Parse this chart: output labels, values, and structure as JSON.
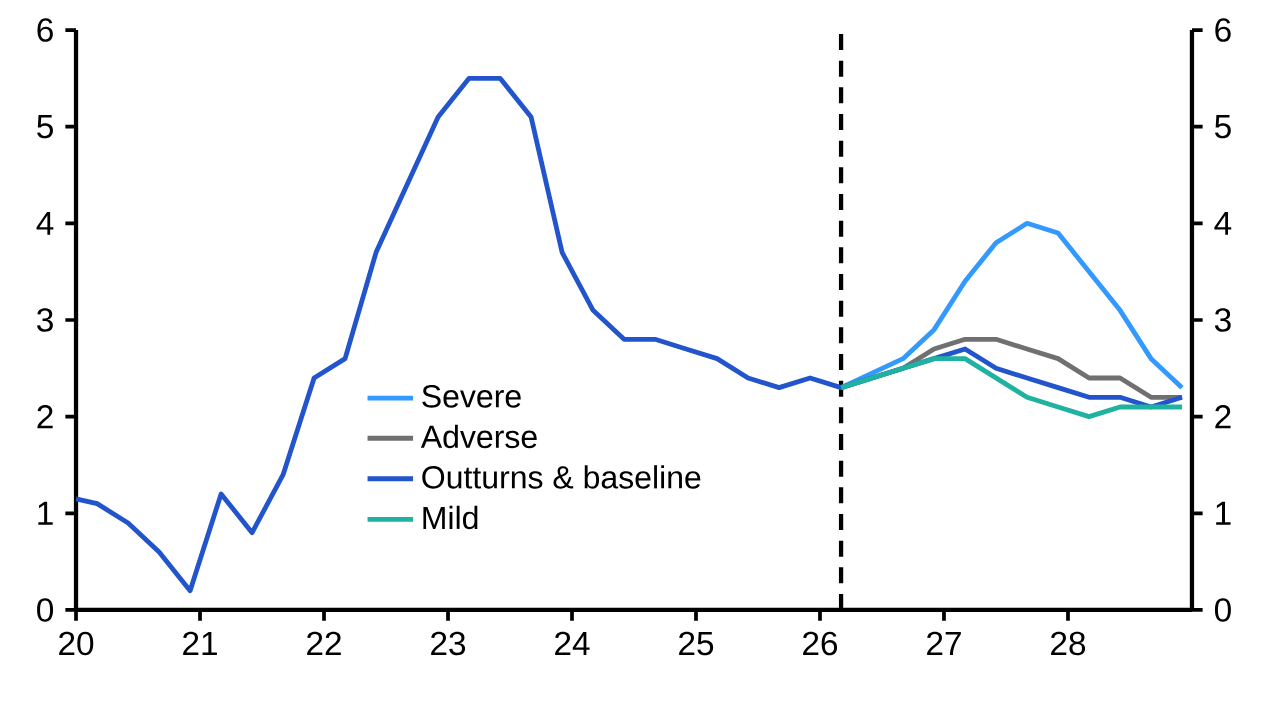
{
  "chart_data": {
    "type": "line",
    "xlim": [
      20,
      29
    ],
    "xticks": [
      20,
      21,
      22,
      23,
      24,
      25,
      26,
      27,
      28
    ],
    "ylim": [
      0,
      6
    ],
    "yticks": [
      0,
      1,
      2,
      3,
      4,
      5,
      6
    ],
    "y2lim": [
      0,
      6
    ],
    "y2ticks": [
      0,
      1,
      2,
      3,
      4,
      5,
      6
    ],
    "series": [
      {
        "name": "Severe",
        "color": "#3399ff",
        "x": [
          26.17,
          26.42,
          26.67,
          26.92,
          27.17,
          27.42,
          27.67,
          27.92,
          28.17,
          28.42,
          28.67,
          28.92
        ],
        "values": [
          2.3,
          2.45,
          2.6,
          2.9,
          3.4,
          3.8,
          4.0,
          3.9,
          3.5,
          3.1,
          2.6,
          2.3
        ]
      },
      {
        "name": "Adverse",
        "color": "#707070",
        "x": [
          26.17,
          26.42,
          26.67,
          26.92,
          27.17,
          27.42,
          27.67,
          27.92,
          28.17,
          28.42,
          28.67,
          28.92
        ],
        "values": [
          2.3,
          2.4,
          2.5,
          2.7,
          2.8,
          2.8,
          2.7,
          2.6,
          2.4,
          2.4,
          2.2,
          2.2
        ]
      },
      {
        "name": "Outturns & baseline",
        "color": "#2255cc",
        "x": [
          20.0,
          20.17,
          20.42,
          20.67,
          20.92,
          21.17,
          21.42,
          21.67,
          21.92,
          22.17,
          22.42,
          22.67,
          22.92,
          23.17,
          23.42,
          23.67,
          23.92,
          24.17,
          24.42,
          24.67,
          24.92,
          25.17,
          25.42,
          25.67,
          25.92,
          26.17,
          26.42,
          26.67,
          26.92,
          27.17,
          27.42,
          27.67,
          27.92,
          28.17,
          28.42,
          28.67,
          28.92
        ],
        "values": [
          1.15,
          1.1,
          0.9,
          0.6,
          0.2,
          1.2,
          0.8,
          1.4,
          2.4,
          2.6,
          3.7,
          4.4,
          5.1,
          5.5,
          5.5,
          5.1,
          3.7,
          3.1,
          2.8,
          2.8,
          2.7,
          2.6,
          2.4,
          2.3,
          2.4,
          2.3,
          2.4,
          2.5,
          2.6,
          2.7,
          2.5,
          2.4,
          2.3,
          2.2,
          2.2,
          2.1,
          2.2
        ]
      },
      {
        "name": "Mild",
        "color": "#20b2a0",
        "x": [
          26.17,
          26.42,
          26.67,
          26.92,
          27.17,
          27.42,
          27.67,
          27.92,
          28.17,
          28.42,
          28.67,
          28.92
        ],
        "values": [
          2.3,
          2.4,
          2.5,
          2.6,
          2.6,
          2.4,
          2.2,
          2.1,
          2.0,
          2.1,
          2.1,
          2.1
        ]
      }
    ],
    "ref_lines": [
      {
        "axis": "x",
        "value": 26.17,
        "color": "#000000",
        "line_style": "dashed"
      }
    ],
    "legend": "center",
    "grid": false,
    "marker": "none",
    "line_style": "solid"
  }
}
